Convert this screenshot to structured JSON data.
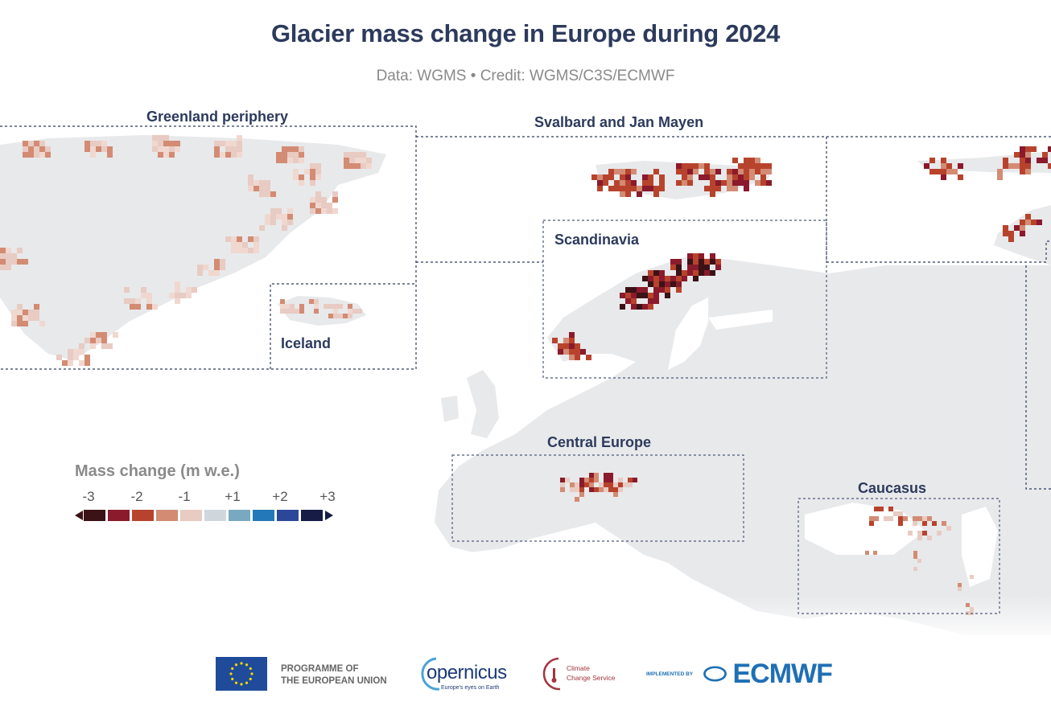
{
  "header": {
    "title": "Glacier mass change in Europe during 2024",
    "subtitle": "Data: WGMS • Credit: WGMS/C3S/ECMWF"
  },
  "regions": {
    "greenland": "Greenland periphery",
    "iceland": "Iceland",
    "svalbard": "Svalbard and Jan Mayen",
    "scandinavia": "Scandinavia",
    "central_europe": "Central Europe",
    "caucasus": "Caucasus"
  },
  "legend": {
    "title": "Mass change (m w.e.)",
    "ticks": [
      "-3",
      "-2",
      "-1",
      "+1",
      "+2",
      "+3"
    ],
    "colors": [
      "#3b1216",
      "#8a1a2c",
      "#b8432d",
      "#d38b74",
      "#e8cbc3",
      "#cfd6dc",
      "#78a9c0",
      "#2278b8",
      "#2c469a",
      "#171c47"
    ]
  },
  "colors": {
    "land": "#e8e9eb",
    "box": "#2c3a5c",
    "title": "#2c3a5c"
  },
  "footer": {
    "eu": [
      "PROGRAMME OF",
      "THE EUROPEAN UNION"
    ],
    "copernicus": "opernicus",
    "copernicus_tagline": "Europe's eyes on Earth",
    "c3s": [
      "Climate",
      "Change Service"
    ],
    "implemented_by": "IMPLEMENTED BY",
    "ecmwf": "ECMWF"
  }
}
